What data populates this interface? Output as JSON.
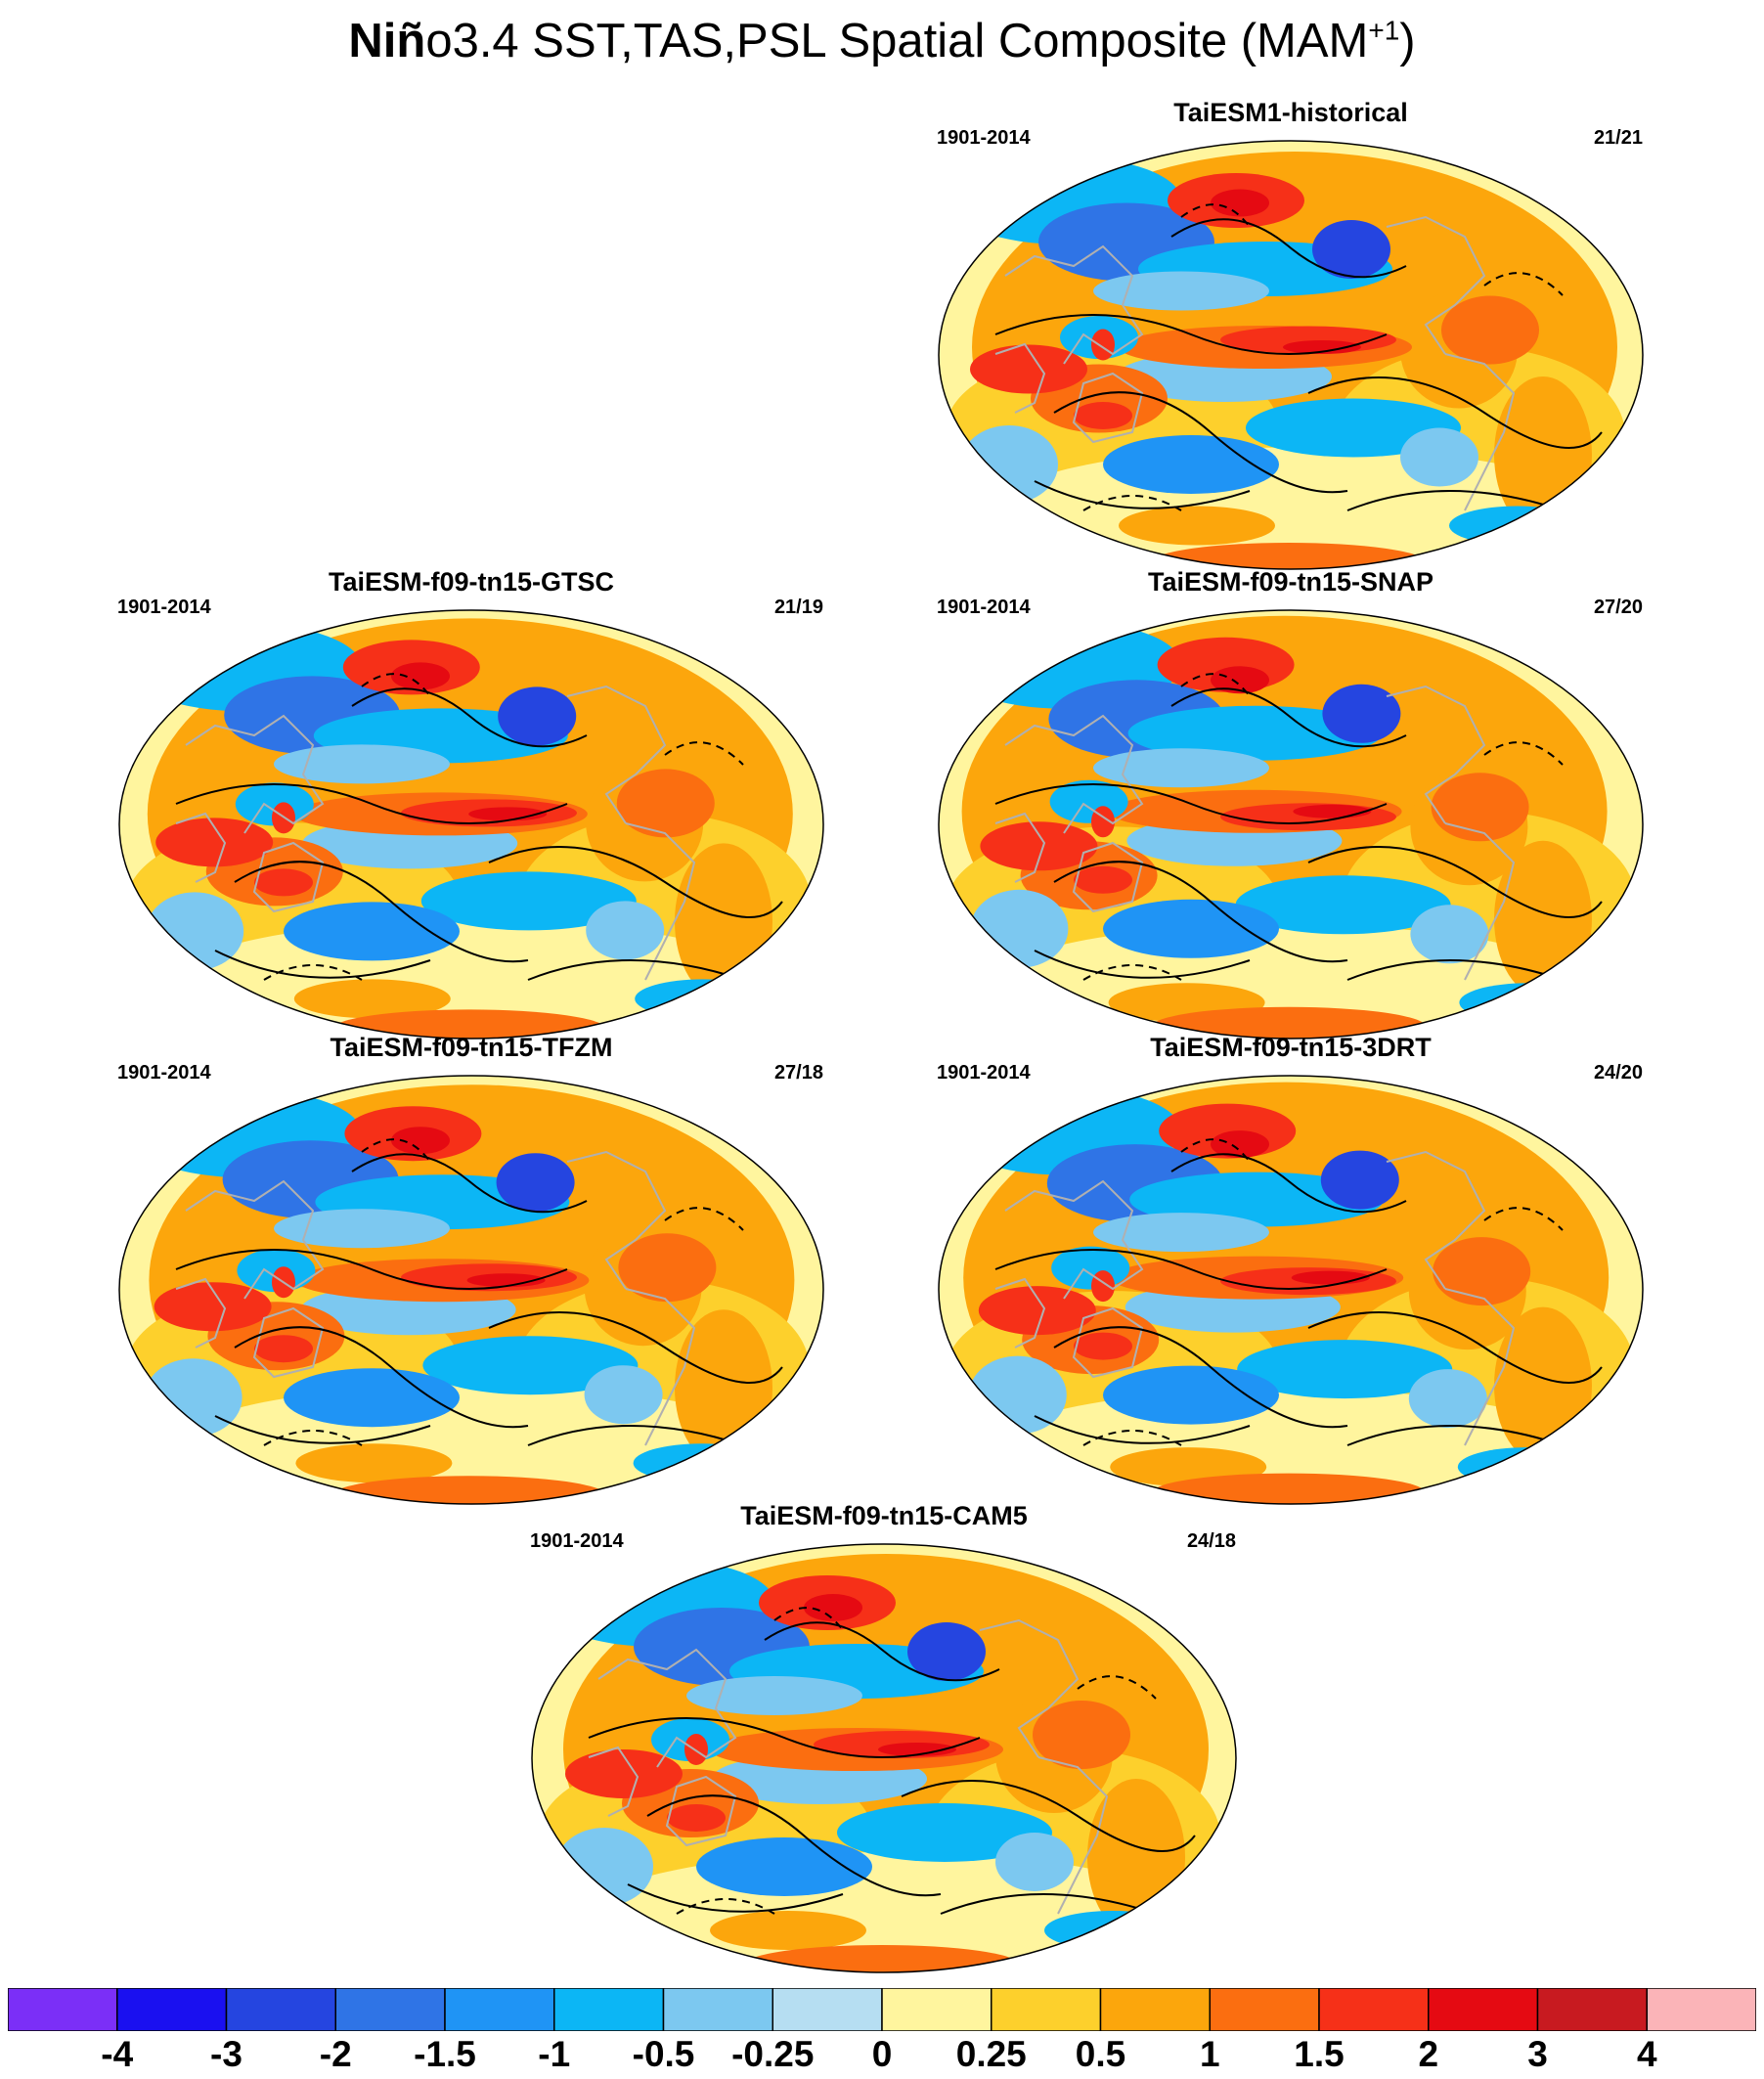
{
  "title": {
    "bold": "Niñ",
    "rest": "o3.4 SST,TAS,PSL Spatial Composite (MAM",
    "sup": "+1",
    "close": ")"
  },
  "panels": [
    {
      "name": "TaiESM1-historical",
      "years": "1901-2014",
      "count": "21/21"
    },
    {
      "name": "TaiESM-f09-tn15-GTSC",
      "years": "1901-2014",
      "count": "21/19"
    },
    {
      "name": "TaiESM-f09-tn15-SNAP",
      "years": "1901-2014",
      "count": "27/20"
    },
    {
      "name": "TaiESM-f09-tn15-TFZM",
      "years": "1901-2014",
      "count": "27/18"
    },
    {
      "name": "TaiESM-f09-tn15-3DRT",
      "years": "1901-2014",
      "count": "24/20"
    },
    {
      "name": "TaiESM-f09-tn15-CAM5",
      "years": "1901-2014",
      "count": "24/18"
    }
  ],
  "colorbar": {
    "labels": [
      "-4",
      "-3",
      "-2",
      "-1.5",
      "-1",
      "-0.5",
      "-0.25",
      "0",
      "0.25",
      "0.5",
      "1",
      "1.5",
      "2",
      "3",
      "4"
    ],
    "colors": [
      "#7b2ff7",
      "#1a10f0",
      "#2545e0",
      "#2f74e6",
      "#1f94f5",
      "#0cb6f5",
      "#7cc8f0",
      "#b6def2",
      "#fff59e",
      "#fdd02c",
      "#fca60c",
      "#fb6e10",
      "#f63018",
      "#e50a12",
      "#c81a20",
      "#fbb4b8"
    ]
  }
}
